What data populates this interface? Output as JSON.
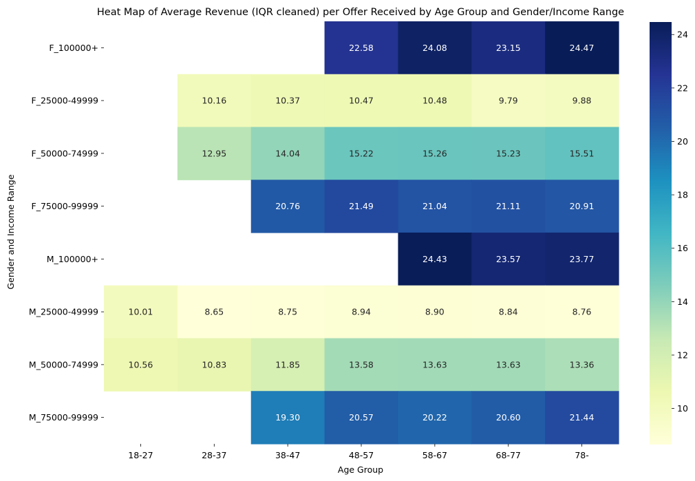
{
  "chart_data": {
    "type": "heatmap",
    "title": "Heat Map of Average Revenue (IQR cleaned) per Offer Received by Age Group and Gender/Income Range",
    "xlabel": "Age Group",
    "ylabel": "Gender and Income Range",
    "x_categories": [
      "18-27",
      "28-37",
      "38-47",
      "48-57",
      "58-67",
      "68-77",
      "78-"
    ],
    "y_categories": [
      "F_100000+",
      "F_25000-49999",
      "F_50000-74999",
      "F_75000-99999",
      "M_100000+",
      "M_25000-49999",
      "M_50000-74999",
      "M_75000-99999"
    ],
    "values": [
      [
        null,
        null,
        null,
        22.58,
        24.08,
        23.15,
        24.47
      ],
      [
        null,
        10.16,
        10.37,
        10.47,
        10.48,
        9.79,
        9.88
      ],
      [
        null,
        12.95,
        14.04,
        15.22,
        15.26,
        15.23,
        15.51
      ],
      [
        null,
        null,
        20.76,
        21.49,
        21.04,
        21.11,
        20.91
      ],
      [
        null,
        null,
        null,
        null,
        24.43,
        23.57,
        23.77
      ],
      [
        10.01,
        8.65,
        8.75,
        8.94,
        8.9,
        8.84,
        8.76
      ],
      [
        10.56,
        10.83,
        11.85,
        13.58,
        13.63,
        13.63,
        13.36
      ],
      [
        null,
        null,
        19.3,
        20.57,
        20.22,
        20.6,
        21.44
      ]
    ],
    "value_labels": [
      [
        "",
        "",
        "",
        "22.58",
        "24.08",
        "23.15",
        "24.47"
      ],
      [
        "",
        "10.16",
        "10.37",
        "10.47",
        "10.48",
        "9.79",
        "9.88"
      ],
      [
        "",
        "12.95",
        "14.04",
        "15.22",
        "15.26",
        "15.23",
        "15.51"
      ],
      [
        "",
        "",
        "20.76",
        "21.49",
        "21.04",
        "21.11",
        "20.91"
      ],
      [
        "",
        "",
        "",
        "",
        "24.43",
        "23.57",
        "23.77"
      ],
      [
        "10.01",
        "8.65",
        "8.75",
        "8.94",
        "8.90",
        "8.84",
        "8.76"
      ],
      [
        "10.56",
        "10.83",
        "11.85",
        "13.58",
        "13.63",
        "13.63",
        "13.36"
      ],
      [
        "",
        "",
        "19.30",
        "20.57",
        "20.22",
        "20.60",
        "21.44"
      ]
    ],
    "colormap": "YlGnBu",
    "vmin": 8.65,
    "vmax": 24.47,
    "colorbar_ticks": [
      10,
      12,
      14,
      16,
      18,
      20,
      22,
      24
    ],
    "colorbar_tick_labels": [
      "10",
      "12",
      "14",
      "16",
      "18",
      "20",
      "22",
      "24"
    ],
    "colorbar_stops": [
      "#ffffd9",
      "#edf8b1",
      "#c7e9b4",
      "#7fcdbb",
      "#41b6c4",
      "#1d91c0",
      "#225ea8",
      "#253494",
      "#081d58"
    ],
    "grid": false,
    "legend": "colorbar-right"
  }
}
